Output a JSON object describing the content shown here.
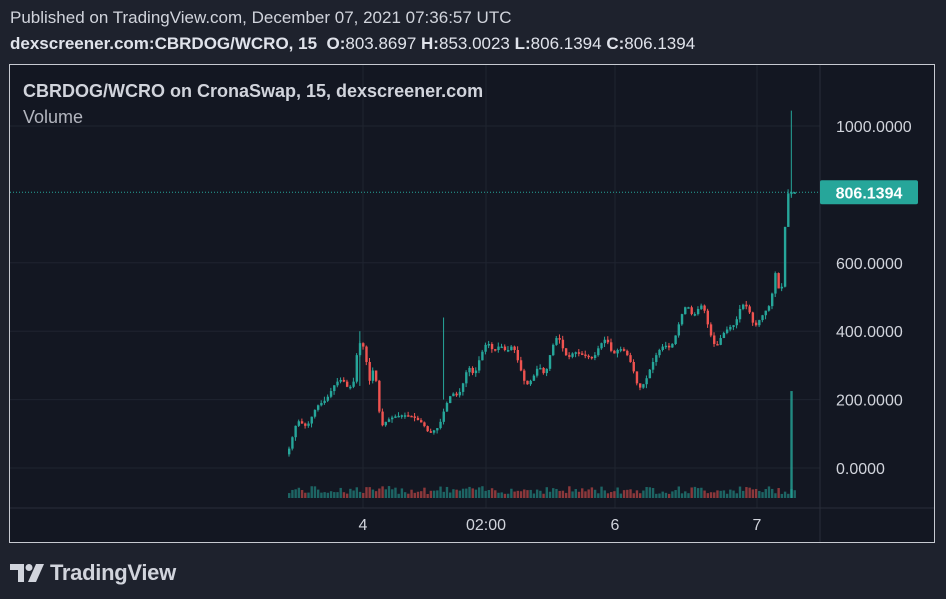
{
  "header": {
    "published": "Published on TradingView.com, December 07, 2021 07:36:57 UTC",
    "symbol": "dexscreener.com:CBRDOG/WCRO, 15",
    "o_label": "O:",
    "o_value": "803.8697",
    "h_label": "H:",
    "h_value": "853.0023",
    "l_label": "L:",
    "l_value": "806.1394",
    "c_label": "C:",
    "c_value": "806.1394"
  },
  "chart": {
    "legend_title": "CBRDOG/WCRO on CronaSwap, 15, dexscreener.com",
    "legend_volume": "Volume"
  },
  "footer": {
    "brand": "TradingView"
  },
  "colors": {
    "up": "#26a69a",
    "down": "#ef5350",
    "background": "#131722",
    "grid": "#1f2430",
    "price_tag": "#26a69a",
    "text": "#d1d4dc"
  },
  "chart_data": {
    "type": "candlestick",
    "title": "CBRDOG/WCRO on CronaSwap, 15, dexscreener.com",
    "y_ticks": [
      "1000.0000",
      "600.0000",
      "400.0000",
      "200.0000",
      "0.0000"
    ],
    "y_tick_values": [
      1000,
      600,
      400,
      200,
      0
    ],
    "x_ticks": [
      "4",
      "02:00",
      "6",
      "7"
    ],
    "last_price": "806.1394",
    "last_price_value": 806.1394,
    "ylim": [
      -100,
      1120
    ],
    "grid": true,
    "price_path": [
      [
        0,
        40
      ],
      [
        3,
        140
      ],
      [
        6,
        120
      ],
      [
        9,
        180
      ],
      [
        12,
        200
      ],
      [
        15,
        250
      ],
      [
        17,
        260
      ],
      [
        19,
        230
      ],
      [
        21,
        260
      ],
      [
        22,
        400
      ],
      [
        23,
        330
      ],
      [
        24,
        380
      ],
      [
        25,
        240
      ],
      [
        27,
        300
      ],
      [
        29,
        120
      ],
      [
        31,
        140
      ],
      [
        33,
        150
      ],
      [
        36,
        155
      ],
      [
        39,
        150
      ],
      [
        42,
        130
      ],
      [
        44,
        100
      ],
      [
        47,
        120
      ],
      [
        49,
        180
      ],
      [
        51,
        220
      ],
      [
        53,
        210
      ],
      [
        55,
        260
      ],
      [
        56,
        300
      ],
      [
        58,
        270
      ],
      [
        60,
        330
      ],
      [
        62,
        370
      ],
      [
        64,
        340
      ],
      [
        66,
        360
      ],
      [
        68,
        340
      ],
      [
        70,
        360
      ],
      [
        72,
        300
      ],
      [
        74,
        240
      ],
      [
        76,
        260
      ],
      [
        78,
        300
      ],
      [
        80,
        270
      ],
      [
        82,
        350
      ],
      [
        84,
        390
      ],
      [
        85,
        360
      ],
      [
        87,
        320
      ],
      [
        89,
        340
      ],
      [
        92,
        330
      ],
      [
        95,
        320
      ],
      [
        97,
        360
      ],
      [
        99,
        380
      ],
      [
        101,
        330
      ],
      [
        103,
        350
      ],
      [
        105,
        340
      ],
      [
        107,
        300
      ],
      [
        109,
        230
      ],
      [
        111,
        250
      ],
      [
        113,
        300
      ],
      [
        115,
        340
      ],
      [
        117,
        360
      ],
      [
        119,
        350
      ],
      [
        121,
        400
      ],
      [
        122,
        440
      ],
      [
        124,
        480
      ],
      [
        126,
        440
      ],
      [
        127,
        460
      ],
      [
        129,
        480
      ],
      [
        131,
        400
      ],
      [
        133,
        350
      ],
      [
        135,
        390
      ],
      [
        137,
        410
      ],
      [
        139,
        420
      ],
      [
        141,
        480
      ],
      [
        143,
        470
      ],
      [
        145,
        410
      ],
      [
        147,
        440
      ],
      [
        150,
        480
      ],
      [
        152,
        600
      ],
      [
        153,
        450
      ],
      [
        154,
        610
      ],
      [
        155,
        800
      ],
      [
        156,
        806
      ]
    ],
    "volume_bars": 158
  }
}
